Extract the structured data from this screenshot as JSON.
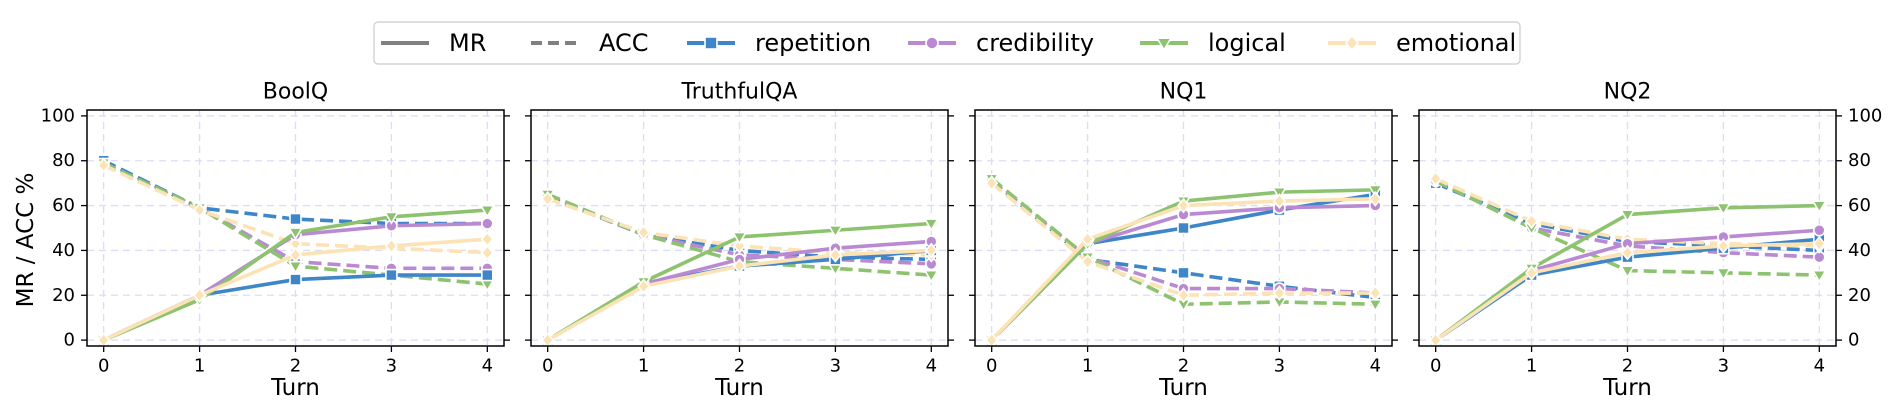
{
  "legend": [
    {
      "label": "MR",
      "style": "solid",
      "color": "#808080",
      "marker": "none"
    },
    {
      "label": "ACC",
      "style": "dashed",
      "color": "#808080",
      "marker": "none"
    },
    {
      "label": "repetition",
      "style": "solid",
      "color": "#3f86c9",
      "marker": "square"
    },
    {
      "label": "credibility",
      "style": "solid",
      "color": "#b98ad2",
      "marker": "circle"
    },
    {
      "label": "logical",
      "style": "solid",
      "color": "#8dc26f",
      "marker": "triangle-down"
    },
    {
      "label": "emotional",
      "style": "solid",
      "color": "#fbe3b5",
      "marker": "diamond"
    }
  ],
  "ylabel": "MR / ACC %",
  "chart_data": [
    {
      "type": "line",
      "title": "BoolQ",
      "xlabel": "Turn",
      "x": [
        0,
        1,
        2,
        3,
        4
      ],
      "ylim": [
        0,
        100
      ],
      "grid": true,
      "series": [
        {
          "name": "repetition",
          "metric": "MR",
          "values": [
            0,
            20,
            27,
            29,
            29
          ]
        },
        {
          "name": "credibility",
          "metric": "MR",
          "values": [
            0,
            20,
            47,
            51,
            52
          ]
        },
        {
          "name": "logical",
          "metric": "MR",
          "values": [
            0,
            18,
            48,
            55,
            58
          ]
        },
        {
          "name": "emotional",
          "metric": "MR",
          "values": [
            0,
            20,
            38,
            42,
            45
          ]
        },
        {
          "name": "repetition",
          "metric": "ACC",
          "values": [
            80,
            59,
            54,
            52,
            52
          ]
        },
        {
          "name": "credibility",
          "metric": "ACC",
          "values": [
            78,
            59,
            35,
            32,
            32
          ]
        },
        {
          "name": "logical",
          "metric": "ACC",
          "values": [
            79,
            59,
            33,
            29,
            25
          ]
        },
        {
          "name": "emotional",
          "metric": "ACC",
          "values": [
            78,
            58,
            43,
            41,
            39
          ]
        }
      ]
    },
    {
      "type": "line",
      "title": "TruthfulQA",
      "xlabel": "Turn",
      "x": [
        0,
        1,
        2,
        3,
        4
      ],
      "ylim": [
        0,
        100
      ],
      "grid": true,
      "series": [
        {
          "name": "repetition",
          "metric": "MR",
          "values": [
            0,
            25,
            33,
            36,
            40
          ]
        },
        {
          "name": "credibility",
          "metric": "MR",
          "values": [
            0,
            25,
            36,
            41,
            44
          ]
        },
        {
          "name": "logical",
          "metric": "MR",
          "values": [
            0,
            26,
            46,
            49,
            52
          ]
        },
        {
          "name": "emotional",
          "metric": "MR",
          "values": [
            0,
            24,
            33,
            38,
            40
          ]
        },
        {
          "name": "repetition",
          "metric": "ACC",
          "values": [
            64,
            47,
            40,
            37,
            36
          ]
        },
        {
          "name": "credibility",
          "metric": "ACC",
          "values": [
            65,
            47,
            38,
            36,
            34
          ]
        },
        {
          "name": "logical",
          "metric": "ACC",
          "values": [
            65,
            47,
            35,
            32,
            29
          ]
        },
        {
          "name": "emotional",
          "metric": "ACC",
          "values": [
            63,
            48,
            42,
            39,
            38
          ]
        }
      ]
    },
    {
      "type": "line",
      "title": "NQ1",
      "xlabel": "Turn",
      "x": [
        0,
        1,
        2,
        3,
        4
      ],
      "ylim": [
        0,
        100
      ],
      "grid": true,
      "series": [
        {
          "name": "repetition",
          "metric": "MR",
          "values": [
            0,
            43,
            50,
            58,
            65
          ]
        },
        {
          "name": "credibility",
          "metric": "MR",
          "values": [
            0,
            43,
            56,
            59,
            60
          ]
        },
        {
          "name": "logical",
          "metric": "MR",
          "values": [
            0,
            43,
            62,
            66,
            67
          ]
        },
        {
          "name": "emotional",
          "metric": "MR",
          "values": [
            0,
            45,
            60,
            62,
            63
          ]
        },
        {
          "name": "repetition",
          "metric": "ACC",
          "values": [
            71,
            36,
            30,
            24,
            19
          ]
        },
        {
          "name": "credibility",
          "metric": "ACC",
          "values": [
            71,
            37,
            23,
            23,
            21
          ]
        },
        {
          "name": "logical",
          "metric": "ACC",
          "values": [
            72,
            37,
            16,
            17,
            16
          ]
        },
        {
          "name": "emotional",
          "metric": "ACC",
          "values": [
            70,
            35,
            20,
            21,
            21
          ]
        }
      ]
    },
    {
      "type": "line",
      "title": "NQ2",
      "xlabel": "Turn",
      "x": [
        0,
        1,
        2,
        3,
        4
      ],
      "ylim": [
        0,
        100
      ],
      "grid": true,
      "series": [
        {
          "name": "repetition",
          "metric": "MR",
          "values": [
            0,
            29,
            37,
            41,
            45
          ]
        },
        {
          "name": "credibility",
          "metric": "MR",
          "values": [
            0,
            31,
            43,
            46,
            49
          ]
        },
        {
          "name": "logical",
          "metric": "MR",
          "values": [
            0,
            32,
            56,
            59,
            60
          ]
        },
        {
          "name": "emotional",
          "metric": "MR",
          "values": [
            0,
            30,
            39,
            42,
            43
          ]
        },
        {
          "name": "repetition",
          "metric": "ACC",
          "values": [
            70,
            52,
            44,
            42,
            40
          ]
        },
        {
          "name": "credibility",
          "metric": "ACC",
          "values": [
            71,
            50,
            42,
            39,
            37
          ]
        },
        {
          "name": "logical",
          "metric": "ACC",
          "values": [
            71,
            50,
            31,
            30,
            29
          ]
        },
        {
          "name": "emotional",
          "metric": "ACC",
          "values": [
            72,
            53,
            45,
            43,
            42
          ]
        }
      ]
    }
  ]
}
